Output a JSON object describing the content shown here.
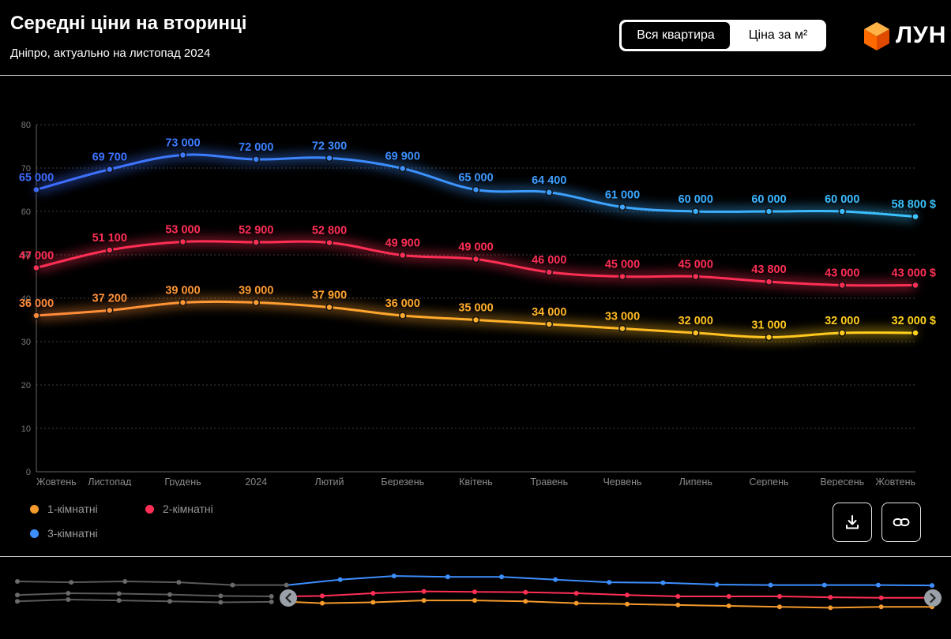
{
  "header": {
    "title": "Середні ціни на вторинці",
    "subtitle": "Дніпро, актуально на листопад 2024"
  },
  "toggle": {
    "active_label": "Вся квартира",
    "inactive_label": "Ціна за м²"
  },
  "logo": {
    "text": "ЛУН"
  },
  "colors": {
    "background": "#000000",
    "one_room": "#f59a2c",
    "two_room": "#ff2e55",
    "three_room": "#3d8fff",
    "grid": "#555555",
    "axis_text": "#7a7a7a"
  },
  "chart_data": {
    "type": "line",
    "title": "Середні ціни на вторинці",
    "subtitle": "Дніпро, актуально на листопад 2024",
    "categories": [
      "Жовтень",
      "Листопад",
      "Грудень",
      "2024",
      "Лютий",
      "Березень",
      "Квітень",
      "Травень",
      "Червень",
      "Липень",
      "Серпень",
      "Вересень",
      "Жовтень"
    ],
    "y_ticks": [
      0,
      10,
      20,
      30,
      40,
      50,
      60,
      70,
      80
    ],
    "ylim": [
      0,
      80
    ],
    "grid": true,
    "legend_position": "bottom-left",
    "series": [
      {
        "key": "three_room",
        "name": "3-кімнатні",
        "color_from": "#3d6bff",
        "color_to": "#3bc4ff",
        "values": [
          65000,
          69700,
          73000,
          72000,
          72300,
          69900,
          65000,
          64400,
          61000,
          60000,
          60000,
          60000,
          58800
        ],
        "labels": [
          "65 000",
          "69 700",
          "73 000",
          "72 000",
          "72 300",
          "69 900",
          "65 000",
          "64 400",
          "61 000",
          "60 000",
          "60 000",
          "60 000",
          "58 800 $"
        ]
      },
      {
        "key": "two_room",
        "name": "2-кімнатні",
        "color_from": "#ff2e55",
        "color_to": "#ff2e55",
        "values": [
          47000,
          51100,
          53000,
          52900,
          52800,
          49900,
          49000,
          46000,
          45000,
          45000,
          43800,
          43000,
          43000
        ],
        "labels": [
          "47 000",
          "51 100",
          "53 000",
          "52 900",
          "52 800",
          "49 900",
          "49 000",
          "46 000",
          "45 000",
          "45 000",
          "43 800",
          "43 000",
          "43 000 $"
        ]
      },
      {
        "key": "one_room",
        "name": "1-кімнатні",
        "color_from": "#ff8a3a",
        "color_to": "#ffd21a",
        "values": [
          36000,
          37200,
          39000,
          39000,
          37900,
          36000,
          35000,
          34000,
          33000,
          32000,
          31000,
          32000,
          32000
        ],
        "labels": [
          "36 000",
          "37 200",
          "39 000",
          "39 000",
          "37 900",
          "36 000",
          "35 000",
          "34 000",
          "33 000",
          "32 000",
          "31 000",
          "32 000",
          "32 000 $"
        ]
      }
    ]
  },
  "navigator": {
    "three_room": [
      60,
      59,
      60,
      59,
      56,
      56,
      62,
      66,
      65,
      65,
      62,
      59,
      58.5,
      56.5,
      56,
      56,
      56,
      55.5
    ],
    "two_room": [
      45,
      47,
      46.5,
      45.5,
      44,
      43.5,
      44,
      47,
      49,
      48.5,
      48,
      47,
      45,
      43.5,
      43.5,
      43.5,
      42.5,
      42,
      42
    ],
    "one_room": [
      38,
      40,
      39,
      38,
      37,
      37.5,
      36,
      37,
      39,
      39,
      38,
      36,
      35,
      34,
      33,
      32,
      31,
      32,
      32
    ]
  },
  "actions": {
    "download_icon": "download-icon",
    "link_icon": "link-icon"
  }
}
